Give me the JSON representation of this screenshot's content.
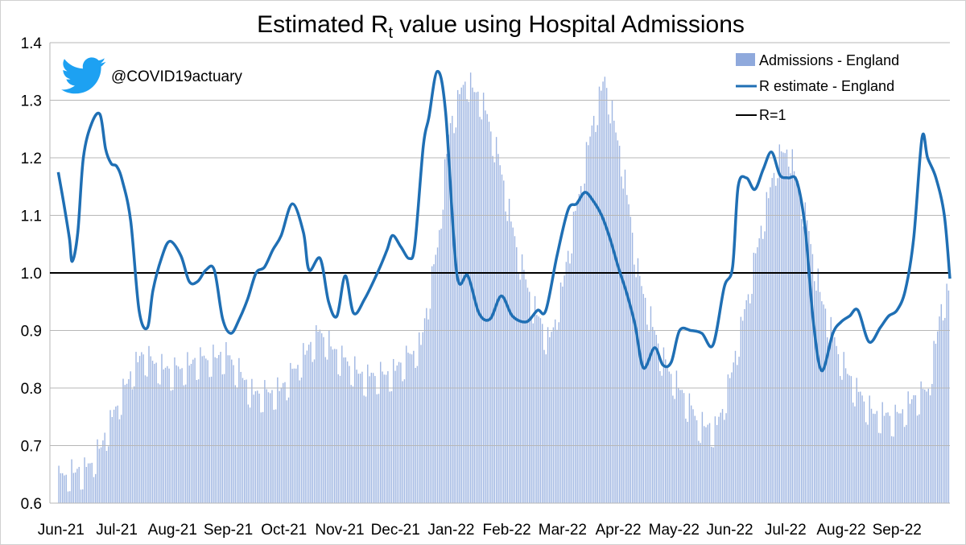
{
  "chart_data": {
    "type": "bar+line",
    "title": "Estimated R",
    "title_subscript": "t",
    "title_suffix": " value using Hospital Admissions",
    "watermark_handle": "@COVID19actuary",
    "ylim": [
      0.6,
      1.4
    ],
    "yticks": [
      0.6,
      0.7,
      0.8,
      0.9,
      1.0,
      1.1,
      1.2,
      1.3,
      1.4
    ],
    "ytick_labels": [
      "0.6",
      "0.7",
      "0.8",
      "0.9",
      "1.0",
      "1.1",
      "1.2",
      "1.3",
      "1.4"
    ],
    "x_month_labels": [
      "Jun-21",
      "Jul-21",
      "Aug-21",
      "Sep-21",
      "Oct-21",
      "Nov-21",
      "Dec-21",
      "Jan-22",
      "Feb-22",
      "Mar-22",
      "Apr-22",
      "May-22",
      "Jun-22",
      "Jul-22",
      "Aug-22",
      "Sep-22"
    ],
    "x_month_index": [
      0,
      1,
      2,
      3,
      4,
      5,
      6,
      7,
      8,
      9,
      10,
      11,
      12,
      13,
      14,
      15
    ],
    "x_range_months": [
      -0.15,
      16.0
    ],
    "gridlines": true,
    "legend_position": "top-right",
    "legend": [
      {
        "label": "Admissions - England",
        "kind": "bar",
        "color": "#8fa9dc"
      },
      {
        "label": "R estimate - England",
        "kind": "line",
        "color": "#1f6fb4"
      },
      {
        "label": "R=1",
        "kind": "line",
        "color": "#000000"
      }
    ],
    "reference_line": {
      "label": "R=1",
      "value": 1.0
    },
    "bar_envelope": {
      "note": "Admissions shown as daily bars on the R axis scale (secondary quantity, approximate envelope)",
      "x_month": [
        0.0,
        0.15,
        0.5,
        0.75,
        1.0,
        1.3,
        1.5,
        2.0,
        2.5,
        3.0,
        3.25,
        3.5,
        4.0,
        4.4,
        4.7,
        5.0,
        5.5,
        6.0,
        6.3,
        6.5,
        6.8,
        7.0,
        7.3,
        7.6,
        7.9,
        8.2,
        8.5,
        8.8,
        9.0,
        9.3,
        9.55,
        9.8,
        10.1,
        10.4,
        10.8,
        11.2,
        11.5,
        11.8,
        12.0,
        12.3,
        12.6,
        12.9,
        13.1,
        13.4,
        13.7,
        14.0,
        14.3,
        14.6,
        15.0,
        15.3,
        15.6,
        15.85,
        16.0
      ],
      "value": [
        0.645,
        0.655,
        0.66,
        0.7,
        0.76,
        0.83,
        0.86,
        0.83,
        0.85,
        0.86,
        0.83,
        0.79,
        0.8,
        0.86,
        0.9,
        0.86,
        0.82,
        0.83,
        0.86,
        0.88,
        1.05,
        1.25,
        1.34,
        1.3,
        1.2,
        1.05,
        0.95,
        0.88,
        0.96,
        1.12,
        1.25,
        1.34,
        1.2,
        1.0,
        0.86,
        0.79,
        0.74,
        0.73,
        0.8,
        0.93,
        1.08,
        1.2,
        1.22,
        1.1,
        0.95,
        0.86,
        0.8,
        0.76,
        0.75,
        0.78,
        0.8,
        0.95,
        0.97
      ]
    },
    "series": [
      {
        "name": "R estimate - England",
        "x_month": [
          0.0,
          0.1,
          0.2,
          0.25,
          0.35,
          0.45,
          0.6,
          0.75,
          0.85,
          0.95,
          1.05,
          1.15,
          1.3,
          1.45,
          1.6,
          1.7,
          1.85,
          2.0,
          2.2,
          2.35,
          2.5,
          2.65,
          2.8,
          2.95,
          3.1,
          3.25,
          3.4,
          3.55,
          3.7,
          3.85,
          4.0,
          4.2,
          4.4,
          4.5,
          4.7,
          4.85,
          5.0,
          5.15,
          5.3,
          5.5,
          5.75,
          5.9,
          6.0,
          6.15,
          6.3,
          6.4,
          6.55,
          6.65,
          6.8,
          6.95,
          7.15,
          7.35,
          7.55,
          7.75,
          7.95,
          8.15,
          8.4,
          8.6,
          8.75,
          8.95,
          9.15,
          9.3,
          9.45,
          9.6,
          9.75,
          9.9,
          10.05,
          10.2,
          10.35,
          10.5,
          10.7,
          10.85,
          11.0,
          11.15,
          11.35,
          11.55,
          11.75,
          11.95,
          12.1,
          12.2,
          12.35,
          12.5,
          12.65,
          12.8,
          12.95,
          13.1,
          13.25,
          13.4,
          13.55,
          13.7,
          13.9,
          14.05,
          14.2,
          14.35,
          14.55,
          14.75,
          14.9,
          15.05,
          15.2,
          15.35,
          15.5,
          15.6,
          15.75,
          15.9,
          16.0
        ],
        "values": [
          1.175,
          1.12,
          1.06,
          1.02,
          1.07,
          1.2,
          1.26,
          1.275,
          1.215,
          1.19,
          1.185,
          1.16,
          1.09,
          0.935,
          0.905,
          0.97,
          1.025,
          1.055,
          1.03,
          0.985,
          0.985,
          1.005,
          1.005,
          0.92,
          0.895,
          0.92,
          0.955,
          1.0,
          1.01,
          1.04,
          1.065,
          1.12,
          1.07,
          1.005,
          1.025,
          0.95,
          0.925,
          0.995,
          0.93,
          0.955,
          1.005,
          1.04,
          1.065,
          1.045,
          1.025,
          1.05,
          1.22,
          1.27,
          1.35,
          1.28,
          1.0,
          0.995,
          0.93,
          0.92,
          0.96,
          0.925,
          0.915,
          0.935,
          0.935,
          1.03,
          1.11,
          1.12,
          1.14,
          1.125,
          1.1,
          1.06,
          1.01,
          0.965,
          0.91,
          0.835,
          0.87,
          0.84,
          0.845,
          0.9,
          0.9,
          0.895,
          0.875,
          0.975,
          1.01,
          1.15,
          1.165,
          1.145,
          1.18,
          1.21,
          1.17,
          1.165,
          1.16,
          1.08,
          0.915,
          0.83,
          0.895,
          0.915,
          0.925,
          0.935,
          0.88,
          0.905,
          0.925,
          0.935,
          0.97,
          1.06,
          1.235,
          1.2,
          1.165,
          1.1,
          0.99
        ]
      }
    ]
  }
}
